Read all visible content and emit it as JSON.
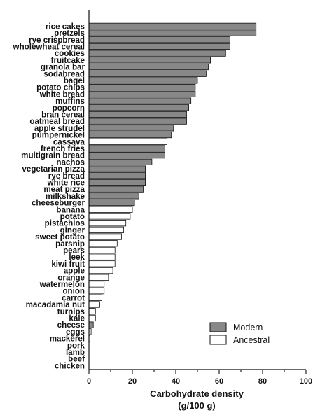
{
  "chart_data": {
    "type": "bar",
    "orientation": "horizontal",
    "categories": [
      "rice cakes",
      "pretzels",
      "rye crispbread",
      "wholewheat cereal",
      "cookies",
      "fruitcake",
      "granola bar",
      "sodabread",
      "bagel",
      "potato chips",
      "white bread",
      "muffins",
      "popcorn",
      "bran cereal",
      "oatmeal bread",
      "apple strudel",
      "pumpernickel",
      "cassava",
      "french fries",
      "multigrain bread",
      "nachos",
      "vegetarian pizza",
      "rye bread",
      "white rice",
      "meat pizza",
      "milkshake",
      "cheeseburger",
      "banana",
      "potato",
      "pistachios",
      "ginger",
      "sweet potato",
      "parsnip",
      "pears",
      "leek",
      "kiwi fruit",
      "apple",
      "orange",
      "watermelon",
      "onion",
      "carrot",
      "macadamia nut",
      "turnips",
      "kale",
      "cheese",
      "eggs",
      "mackerel",
      "pork",
      "lamb",
      "beef",
      "chicken"
    ],
    "values": [
      77,
      77,
      65,
      65,
      63,
      56,
      55,
      54,
      50,
      49,
      49,
      47,
      46,
      45,
      45,
      39,
      38,
      36,
      35,
      35,
      29,
      26,
      26,
      26,
      25,
      23,
      21,
      20,
      19,
      17,
      16,
      15,
      13,
      12,
      12,
      12,
      11,
      9,
      7,
      7,
      6,
      5,
      3,
      3,
      2,
      1,
      0.5,
      0,
      0,
      0,
      0
    ],
    "groups": [
      "modern",
      "modern",
      "modern",
      "modern",
      "modern",
      "modern",
      "modern",
      "modern",
      "modern",
      "modern",
      "modern",
      "modern",
      "modern",
      "modern",
      "modern",
      "modern",
      "modern",
      "ancestral",
      "modern",
      "modern",
      "modern",
      "modern",
      "modern",
      "modern",
      "modern",
      "modern",
      "modern",
      "ancestral",
      "ancestral",
      "ancestral",
      "ancestral",
      "ancestral",
      "ancestral",
      "ancestral",
      "ancestral",
      "ancestral",
      "ancestral",
      "ancestral",
      "ancestral",
      "ancestral",
      "ancestral",
      "ancestral",
      "ancestral",
      "ancestral",
      "modern",
      "ancestral",
      "ancestral",
      "ancestral",
      "ancestral",
      "ancestral",
      "ancestral"
    ],
    "series": [
      {
        "key": "modern",
        "name": "Modern",
        "color": "#888888"
      },
      {
        "key": "ancestral",
        "name": "Ancestral",
        "color": "#ffffff"
      }
    ],
    "xlabel_line1": "Carbohydrate density",
    "xlabel_line2": "(g/100 g)",
    "ylabel": "",
    "xlim": [
      0,
      100
    ],
    "xticks": [
      0,
      20,
      40,
      60,
      80,
      100
    ],
    "grid": false,
    "legend_position": "bottom-right"
  }
}
